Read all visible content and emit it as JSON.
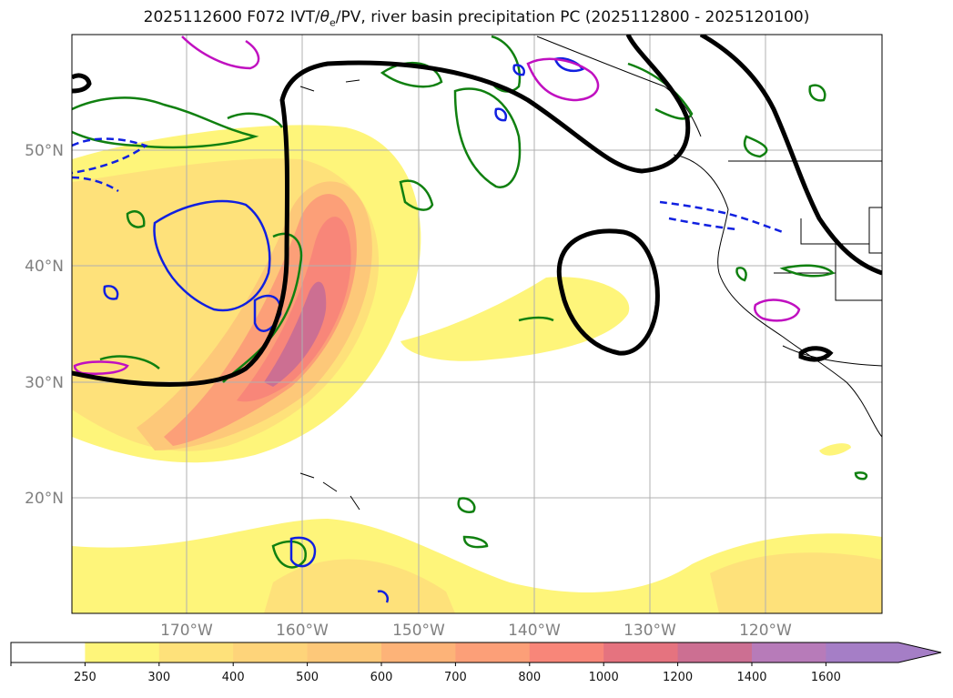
{
  "title_parts": {
    "pre": "2025112600 F072 IVT/",
    "theta": "θ",
    "sub": "e",
    "post": "/PV, river basin precipitation PC (2025112800 - 2025120100)"
  },
  "map": {
    "lat_labels": [
      "50°N",
      "40°N",
      "30°N",
      "20°N"
    ],
    "lon_labels": [
      "170°W",
      "160°W",
      "150°W",
      "140°W",
      "130°W",
      "120°W"
    ]
  },
  "colorbar": {
    "ticks": [
      "250",
      "300",
      "400",
      "500",
      "600",
      "700",
      "800",
      "1000",
      "1200",
      "1400",
      "1600"
    ],
    "colors": [
      "#ffffff",
      "#fef57a",
      "#fee17a",
      "#fed47a",
      "#fdc879",
      "#fdb378",
      "#fc9f78",
      "#f88679",
      "#e5737f",
      "#cc6f92",
      "#b77bb9",
      "#a57ec6"
    ]
  }
}
